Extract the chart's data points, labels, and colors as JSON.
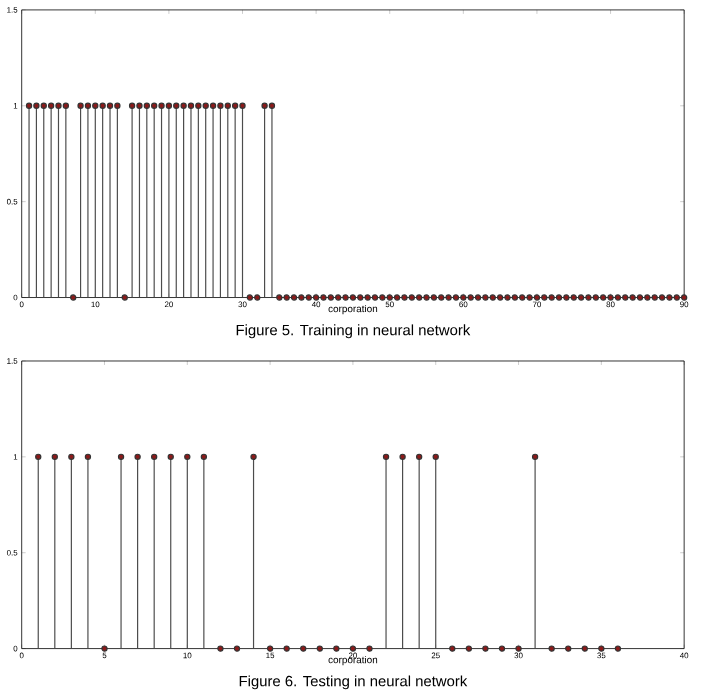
{
  "chart_data": [
    {
      "type": "lollipop",
      "xlabel": "corporation",
      "annotations": [
        "Figure 5. Training in neural network"
      ],
      "x": [
        1,
        2,
        3,
        4,
        5,
        6,
        7,
        8,
        9,
        10,
        11,
        12,
        13,
        14,
        15,
        16,
        17,
        18,
        19,
        20,
        21,
        22,
        23,
        24,
        25,
        26,
        27,
        28,
        29,
        30,
        31,
        32,
        33,
        34,
        35,
        36,
        37,
        38,
        39,
        40,
        41,
        42,
        43,
        44,
        45,
        46,
        47,
        48,
        49,
        50,
        51,
        52,
        53,
        54,
        55,
        56,
        57,
        58,
        59,
        60,
        61,
        62,
        63,
        64,
        65,
        66,
        67,
        68,
        69,
        70,
        71,
        72,
        73,
        74,
        75,
        76,
        77,
        78,
        79,
        80,
        81,
        82,
        83,
        84,
        85,
        86,
        87,
        88,
        89,
        90
      ],
      "values": [
        1,
        1,
        1,
        1,
        1,
        1,
        0,
        1,
        1,
        1,
        1,
        1,
        1,
        0,
        1,
        1,
        1,
        1,
        1,
        1,
        1,
        1,
        1,
        1,
        1,
        1,
        1,
        1,
        1,
        1,
        0,
        0,
        1,
        1,
        0,
        0,
        0,
        0,
        0,
        0,
        0,
        0,
        0,
        0,
        0,
        0,
        0,
        0,
        0,
        0,
        0,
        0,
        0,
        0,
        0,
        0,
        0,
        0,
        0,
        0,
        0,
        0,
        0,
        0,
        0,
        0,
        0,
        0,
        0,
        0,
        0,
        0,
        0,
        0,
        0,
        0,
        0,
        0,
        0,
        0,
        0,
        0,
        0,
        0,
        0,
        0,
        0,
        0,
        0,
        0
      ],
      "color": "#8b1a1a",
      "marker": "circle",
      "xlim": [
        0,
        90
      ],
      "xticks": [
        0,
        10,
        20,
        30,
        40,
        50,
        60,
        70,
        80,
        90
      ],
      "ylim": [
        0,
        1.5
      ],
      "yticks": [
        0,
        0.5,
        1,
        1.5
      ],
      "grid": false
    },
    {
      "type": "lollipop",
      "xlabel": "corporation",
      "annotations": [
        "Figure 6. Testing in neural network"
      ],
      "x": [
        1,
        2,
        3,
        4,
        5,
        6,
        7,
        8,
        9,
        10,
        11,
        12,
        13,
        14,
        15,
        16,
        17,
        18,
        19,
        20,
        21,
        22,
        23,
        24,
        25,
        26,
        27,
        28,
        29,
        30,
        31,
        32,
        33,
        34,
        35,
        36
      ],
      "values": [
        1,
        1,
        1,
        1,
        0,
        1,
        1,
        1,
        1,
        1,
        1,
        0,
        0,
        1,
        0,
        0,
        0,
        0,
        0,
        0,
        0,
        1,
        1,
        1,
        1,
        0,
        0,
        0,
        0,
        0,
        1,
        0,
        0,
        0,
        0,
        0
      ],
      "color": "#8b1a1a",
      "marker": "circle",
      "xlim": [
        0,
        40
      ],
      "xticks": [
        0,
        5,
        10,
        15,
        20,
        25,
        30,
        35,
        40
      ],
      "ylim": [
        0,
        1.5
      ],
      "yticks": [
        0,
        0.5,
        1,
        1.5
      ],
      "grid": false
    }
  ]
}
